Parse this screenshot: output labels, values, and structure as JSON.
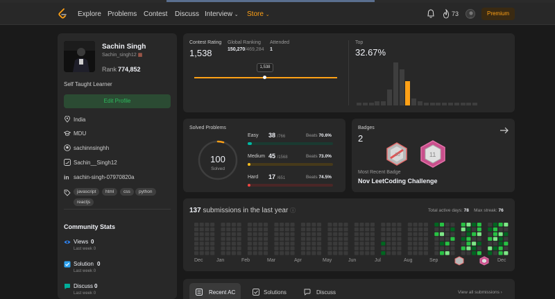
{
  "nav": {
    "items": [
      "Explore",
      "Problems",
      "Contest",
      "Discuss",
      "Interview",
      "Store"
    ],
    "streak": "73",
    "premium": "Premium"
  },
  "profile": {
    "name": "Sachin Singh",
    "handle": "Sachin_singh12",
    "rank_label": "Rank",
    "rank": "774,852",
    "bio": "Self Taught Learner",
    "edit_button": "Edit Profile",
    "location": "India",
    "school": "MDU",
    "github": "sachinnsinghh",
    "twitter": "Sachin__Singh12",
    "linkedin": "sachin-singh-07970820a",
    "skills": [
      "javascript",
      "html",
      "css",
      "python",
      "reactjs"
    ]
  },
  "community": {
    "title": "Community Stats",
    "stats": [
      {
        "label": "Views",
        "value": "0",
        "sub": "Last week",
        "sub_val": "0"
      },
      {
        "label": "Solution",
        "value": "0",
        "sub": "Last week",
        "sub_val": "0"
      },
      {
        "label": "Discuss",
        "value": "0",
        "sub": "Last week",
        "sub_val": "0"
      }
    ]
  },
  "contest": {
    "rating_label": "Contest Rating",
    "rating": "1,538",
    "global_label": "Global Ranking",
    "global": "150,270",
    "global_total": "/469,284",
    "attended_label": "Attended",
    "attended": "1",
    "tooltip": "1,538",
    "top_label": "Top",
    "top": "32.67%",
    "histogram": [
      2,
      2,
      2,
      3,
      3,
      11,
      30,
      25,
      17,
      5,
      3,
      2,
      2,
      2,
      2,
      2,
      2,
      2,
      2,
      2
    ],
    "hist_highlight": 8
  },
  "solved": {
    "title": "Solved Problems",
    "total": "100",
    "total_label": "Solved",
    "difficulties": [
      {
        "name": "Easy",
        "count": "38",
        "total": "/766",
        "beats_label": "Beats",
        "beats": "70.6%",
        "ratio": 0.0496,
        "color": "#00b8a3",
        "track": "#1a3a31"
      },
      {
        "name": "Medium",
        "count": "45",
        "total": "/1568",
        "beats_label": "Beats",
        "beats": "73.0%",
        "ratio": 0.0287,
        "color": "#ffc01e",
        "track": "#46391a"
      },
      {
        "name": "Hard",
        "count": "17",
        "total": "/651",
        "beats_label": "Beats",
        "beats": "74.5%",
        "ratio": 0.0261,
        "color": "#ef4743",
        "track": "#4a2626"
      }
    ]
  },
  "badges": {
    "title": "Badges",
    "count": "2",
    "recent_label": "Most Recent Badge",
    "recent": "Nov LeetCoding Challenge"
  },
  "submissions": {
    "count": "137",
    "text": "submissions in the last year",
    "active_label": "Total active days:",
    "active": "78",
    "streak_label": "Max streak:",
    "streak": "76",
    "months": [
      "Dec",
      "Jan",
      "Feb",
      "Mar",
      "Apr",
      "May",
      "Jun",
      "Jul",
      "Aug",
      "Sep",
      "Oct",
      "Nov",
      "Dec"
    ]
  },
  "tabs": {
    "items": [
      "Recent AC",
      "Solutions",
      "Discuss"
    ],
    "view_all": "View all submissions"
  },
  "colors": {
    "accent": "#ffa116",
    "green": "#2cbb5d",
    "card": "#282828",
    "bg": "#1a1a1a"
  }
}
